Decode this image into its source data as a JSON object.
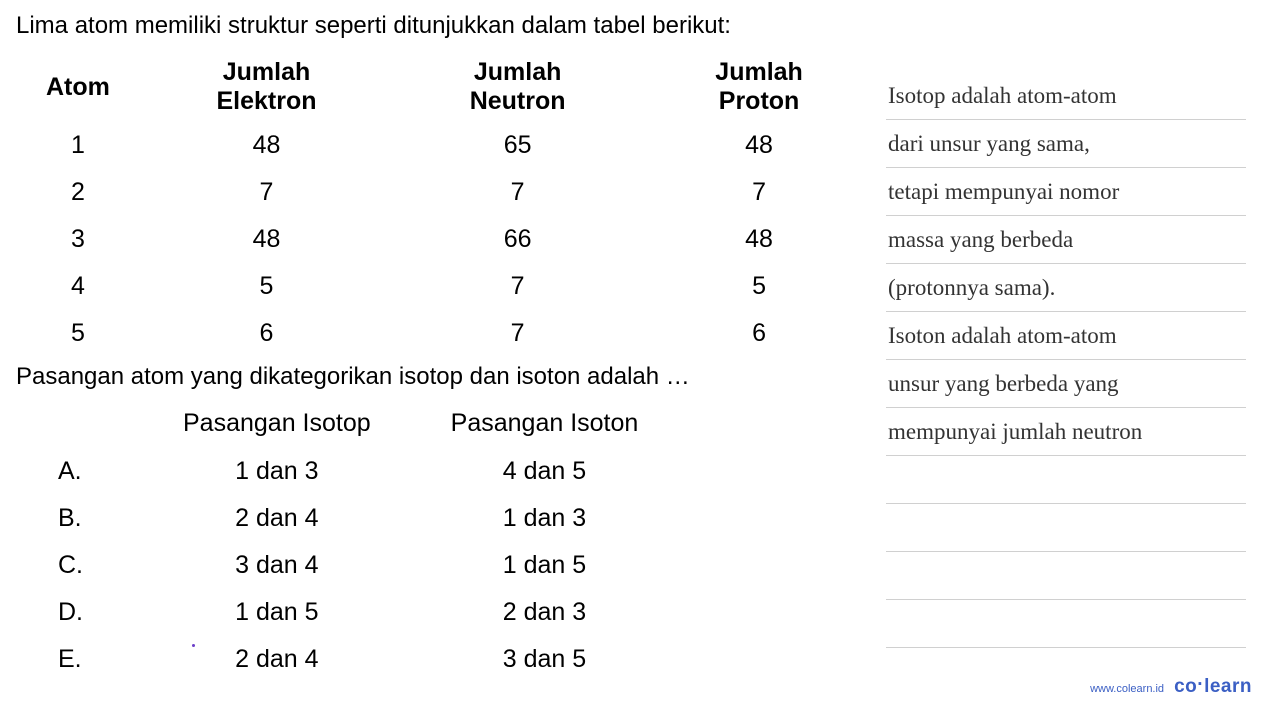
{
  "intro": "Lima atom memiliki struktur seperti ditunjukkan dalam tabel berikut:",
  "atom_table": {
    "headers": [
      "Atom",
      "Jumlah Elektron",
      "Jumlah Neutron",
      "Jumlah Proton"
    ],
    "rows": [
      [
        "1",
        "48",
        "65",
        "48"
      ],
      [
        "2",
        "7",
        "7",
        "7"
      ],
      [
        "3",
        "48",
        "66",
        "48"
      ],
      [
        "4",
        "5",
        "7",
        "5"
      ],
      [
        "5",
        "6",
        "7",
        "6"
      ]
    ]
  },
  "question": "Pasangan atom yang dikategorikan isotop dan isoton adalah …",
  "options_table": {
    "headers": [
      "",
      "Pasangan Isotop",
      "Pasangan Isoton"
    ],
    "rows": [
      [
        "A.",
        "1 dan 3",
        "4 dan 5"
      ],
      [
        "B.",
        "2 dan 4",
        "1 dan 3"
      ],
      [
        "C.",
        "3 dan 4",
        "1 dan 5"
      ],
      [
        "D.",
        "1 dan 5",
        "2 dan 3"
      ],
      [
        "E.",
        "2 dan 4",
        "3 dan 5"
      ]
    ]
  },
  "notes": {
    "lines": [
      "Isotop adalah atom-atom",
      "dari unsur yang sama,",
      "tetapi mempunyai nomor",
      "massa yang berbeda",
      "(protonnya sama).",
      "Isoton adalah atom-atom",
      "unsur yang berbeda yang",
      "mempunyai jumlah neutron",
      "",
      "",
      "",
      ""
    ],
    "text_color": "#333333",
    "line_color": "#d0d0d0",
    "font_family": "Comic Sans MS"
  },
  "logo": {
    "url": "www.colearn.id",
    "brand_left": "co",
    "brand_sep": "·",
    "brand_right": "learn",
    "color": "#3b5fc4"
  },
  "colors": {
    "background": "#ffffff",
    "text": "#000000"
  }
}
